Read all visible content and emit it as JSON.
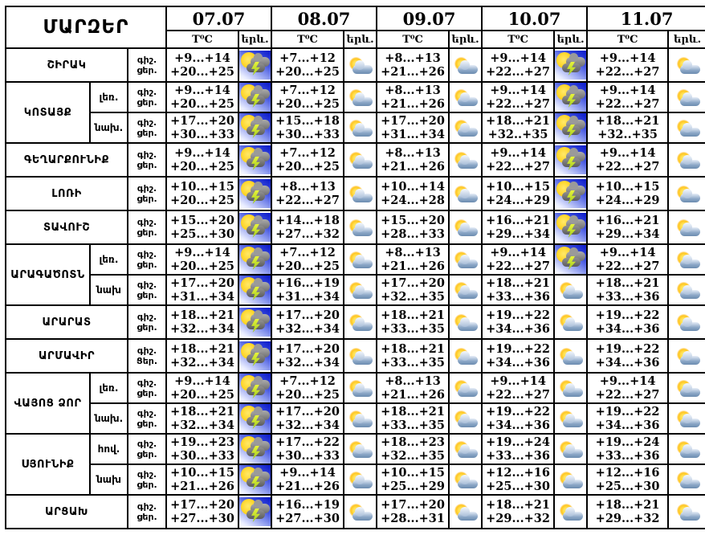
{
  "header": {
    "corner_title": "ՄԱՐԶԵՐ",
    "dates": [
      "07.07",
      "08.07",
      "09.07",
      "10.07",
      "11.07"
    ],
    "temp_label": "T⁰C",
    "cond_label": "երև."
  },
  "colors": {
    "grid": "#000000",
    "storm_bg": "#1a28d0",
    "sun": "#ffd016",
    "storm_cloud": "#8f8f8f",
    "bolt": "#c8e032",
    "cloud_blue": "#8aa6c6"
  },
  "icons": {
    "storm": "sun-cloud-lightning",
    "cloud": "sun-behind-cloud"
  },
  "rows": [
    {
      "region": "ՇԻՐԱԿ",
      "zone": null,
      "night_label": "գիշ.",
      "day_label": "ցեր.",
      "cells": [
        {
          "night": "+9...+14",
          "day": "+20...+25",
          "icon": "storm"
        },
        {
          "night": "+7...+12",
          "day": "+20...+25",
          "icon": "cloud"
        },
        {
          "night": "+8...+13",
          "day": "+21...+26",
          "icon": "cloud"
        },
        {
          "night": "+9...+14",
          "day": "+22...+27",
          "icon": "storm"
        },
        {
          "night": "+9...+14",
          "day": "+22...+27",
          "icon": "cloud"
        }
      ]
    },
    {
      "region": "ԿՈՏԱՅՔ",
      "zone": "լեռ.",
      "night_label": "գիշ.",
      "day_label": "ցեր.",
      "cells": [
        {
          "night": "+9...+14",
          "day": "+20...+25",
          "icon": "storm"
        },
        {
          "night": "+7...+12",
          "day": "+20...+25",
          "icon": "cloud"
        },
        {
          "night": "+8...+13",
          "day": "+21...+26",
          "icon": "cloud"
        },
        {
          "night": "+9...+14",
          "day": "+22...+27",
          "icon": "storm"
        },
        {
          "night": "+9...+14",
          "day": "+22...+27",
          "icon": "cloud"
        }
      ]
    },
    {
      "region": "ԿՈՏԱՅՔ",
      "zone": "նախ.",
      "night_label": "գիշ.",
      "day_label": "ցեր.",
      "cells": [
        {
          "night": "+17...+20",
          "day": "+30...+33",
          "icon": "storm"
        },
        {
          "night": "+15...+18",
          "day": "+30...+33",
          "icon": "cloud"
        },
        {
          "night": "+17...+20",
          "day": "+31...+34",
          "icon": "cloud"
        },
        {
          "night": "+18...+21",
          "day": "+32..+35",
          "icon": "storm"
        },
        {
          "night": "+18...+21",
          "day": "+32..+35",
          "icon": "cloud"
        }
      ]
    },
    {
      "region": "ԳԵՂԱՐՔՈՒՆԻՔ",
      "zone": null,
      "night_label": "գիշ.",
      "day_label": "ցեր.",
      "cells": [
        {
          "night": "+9...+14",
          "day": "+20...+25",
          "icon": "storm"
        },
        {
          "night": "+7...+12",
          "day": "+20...+25",
          "icon": "cloud"
        },
        {
          "night": "+8...+13",
          "day": "+21...+26",
          "icon": "cloud"
        },
        {
          "night": "+9...+14",
          "day": "+22...+27",
          "icon": "storm"
        },
        {
          "night": "+9...+14",
          "day": "+22...+27",
          "icon": "cloud"
        }
      ]
    },
    {
      "region": "ԼՈՌԻ",
      "zone": null,
      "night_label": "գիշ.",
      "day_label": "ցեր.",
      "cells": [
        {
          "night": "+10...+15",
          "day": "+20...+25",
          "icon": "storm"
        },
        {
          "night": "+8...+13",
          "day": "+22...+27",
          "icon": "cloud"
        },
        {
          "night": "+10...+14",
          "day": "+24...+28",
          "icon": "cloud"
        },
        {
          "night": "+10...+15",
          "day": "+24...+29",
          "icon": "storm"
        },
        {
          "night": "+10...+15",
          "day": "+24...+29",
          "icon": "cloud"
        }
      ]
    },
    {
      "region": "ՏԱՎՈՒՇ",
      "zone": null,
      "night_label": "գիշ.",
      "day_label": "ցեր.",
      "cells": [
        {
          "night": "+15...+20",
          "day": "+25...+30",
          "icon": "storm"
        },
        {
          "night": "+14...+18",
          "day": "+27...+32",
          "icon": "cloud"
        },
        {
          "night": "+15...+20",
          "day": "+28...+33",
          "icon": "cloud"
        },
        {
          "night": "+16...+21",
          "day": "+29...+34",
          "icon": "storm"
        },
        {
          "night": "+16...+21",
          "day": "+29...+34",
          "icon": "cloud"
        }
      ]
    },
    {
      "region": "ԱՐԱԳԱԾՈՏՆ",
      "zone": "լեռ.",
      "night_label": "գիշ.",
      "day_label": "ցեր.",
      "cells": [
        {
          "night": "+9...+14",
          "day": "+20...+25",
          "icon": "storm"
        },
        {
          "night": "+7...+12",
          "day": "+20...+25",
          "icon": "cloud"
        },
        {
          "night": "+8...+13",
          "day": "+21...+26",
          "icon": "cloud"
        },
        {
          "night": "+9...+14",
          "day": "+22...+27",
          "icon": "storm"
        },
        {
          "night": "+9...+14",
          "day": "+22...+27",
          "icon": "cloud"
        }
      ]
    },
    {
      "region": "ԱՐԱԳԱԾՈՏՆ",
      "zone": "նախ",
      "night_label": "գիշ.",
      "day_label": "ցեր.",
      "cells": [
        {
          "night": "+17...+20",
          "day": "+31...+34",
          "icon": "storm"
        },
        {
          "night": "+16...+19",
          "day": "+31...+34",
          "icon": "cloud"
        },
        {
          "night": "+17...+20",
          "day": "+32...+35",
          "icon": "cloud"
        },
        {
          "night": "+18...+21",
          "day": "+33...+36",
          "icon": "cloud"
        },
        {
          "night": "+18...+21",
          "day": "+33...+36",
          "icon": "cloud"
        }
      ]
    },
    {
      "region": "ԱՐԱՐԱՏ",
      "zone": null,
      "night_label": "գիշ.",
      "day_label": "ցեր.",
      "cells": [
        {
          "night": "+18...+21",
          "day": "+32...+34",
          "icon": "storm"
        },
        {
          "night": "+17...+20",
          "day": "+32...+34",
          "icon": "cloud"
        },
        {
          "night": "+18...+21",
          "day": "+33...+35",
          "icon": "cloud"
        },
        {
          "night": "+19...+22",
          "day": "+34...+36",
          "icon": "cloud"
        },
        {
          "night": "+19...+22",
          "day": "+34...+36",
          "icon": "cloud"
        }
      ]
    },
    {
      "region": "ԱՐՄԱՎԻՐ",
      "zone": null,
      "night_label": "գիշ.",
      "day_label": "Ցեր.",
      "cells": [
        {
          "night": "+18...+21",
          "day": "+32...+34",
          "icon": "storm"
        },
        {
          "night": "+17...+20",
          "day": "+32...+34",
          "icon": "cloud"
        },
        {
          "night": "+18...+21",
          "day": "+33...+35",
          "icon": "cloud"
        },
        {
          "night": "+19...+22",
          "day": "+34...+36",
          "icon": "cloud"
        },
        {
          "night": "+19...+22",
          "day": "+34...+36",
          "icon": "cloud"
        }
      ]
    },
    {
      "region": "ՎԱՅՈՑ ՁՈՐ",
      "zone": "լեռ.",
      "night_label": "գիշ.",
      "day_label": "ցեր.",
      "cells": [
        {
          "night": "+9...+14",
          "day": "+20...+25",
          "icon": "storm"
        },
        {
          "night": "+7...+12",
          "day": "+20...+25",
          "icon": "cloud"
        },
        {
          "night": "+8...+13",
          "day": "+21...+26",
          "icon": "cloud"
        },
        {
          "night": "+9...+14",
          "day": "+22...+27",
          "icon": "cloud"
        },
        {
          "night": "+9...+14",
          "day": "+22...+27",
          "icon": "cloud"
        }
      ]
    },
    {
      "region": "ՎԱՅՈՑ ՁՈՐ",
      "zone": "նախ.",
      "night_label": "գիշ.",
      "day_label": "ցեր.",
      "cells": [
        {
          "night": "+18...+21",
          "day": "+32...+34",
          "icon": "storm"
        },
        {
          "night": "+17...+20",
          "day": "+32...+34",
          "icon": "cloud"
        },
        {
          "night": "+18...+21",
          "day": "+33...+35",
          "icon": "cloud"
        },
        {
          "night": "+19...+22",
          "day": "+34...+36",
          "icon": "cloud"
        },
        {
          "night": "+19...+22",
          "day": "+34...+36",
          "icon": "cloud"
        }
      ]
    },
    {
      "region": "ՍՅՈՒՆԻՔ",
      "zone": "հով.",
      "night_label": "գիշ.",
      "day_label": "ցեր.",
      "cells": [
        {
          "night": "+19...+23",
          "day": "+30...+33",
          "icon": "storm"
        },
        {
          "night": "+17...+22",
          "day": "+30...+33",
          "icon": "cloud"
        },
        {
          "night": "+18...+23",
          "day": "+32...+35",
          "icon": "cloud"
        },
        {
          "night": "+19...+24",
          "day": "+33...+36",
          "icon": "cloud"
        },
        {
          "night": "+19...+24",
          "day": "+33...+36",
          "icon": "cloud"
        }
      ]
    },
    {
      "region": "ՍՅՈՒՆԻՔ",
      "zone": "նախ",
      "night_label": "գիշ.",
      "day_label": "ցեր.",
      "cells": [
        {
          "night": "+10...+15",
          "day": "+21...+26",
          "icon": "storm"
        },
        {
          "night": "+9...+14",
          "day": "+21...+26",
          "icon": "cloud"
        },
        {
          "night": "+10...+15",
          "day": "+25...+29",
          "icon": "cloud"
        },
        {
          "night": "+12...+16",
          "day": "+25...+30",
          "icon": "cloud"
        },
        {
          "night": "+12...+16",
          "day": "+25...+30",
          "icon": "cloud"
        }
      ]
    },
    {
      "region": "ԱՐՑԱԽ",
      "zone": null,
      "night_label": "գիշ.",
      "day_label": "ցեր.",
      "cells": [
        {
          "night": "+17...+20",
          "day": "+27...+30",
          "icon": "storm"
        },
        {
          "night": "+16...+19",
          "day": "+27...+30",
          "icon": "cloud"
        },
        {
          "night": "+17...+20",
          "day": "+28...+31",
          "icon": "cloud"
        },
        {
          "night": "+18...+21",
          "day": "+29...+32",
          "icon": "cloud"
        },
        {
          "night": "+18...+21",
          "day": "+29...+32",
          "icon": "cloud"
        }
      ]
    }
  ]
}
